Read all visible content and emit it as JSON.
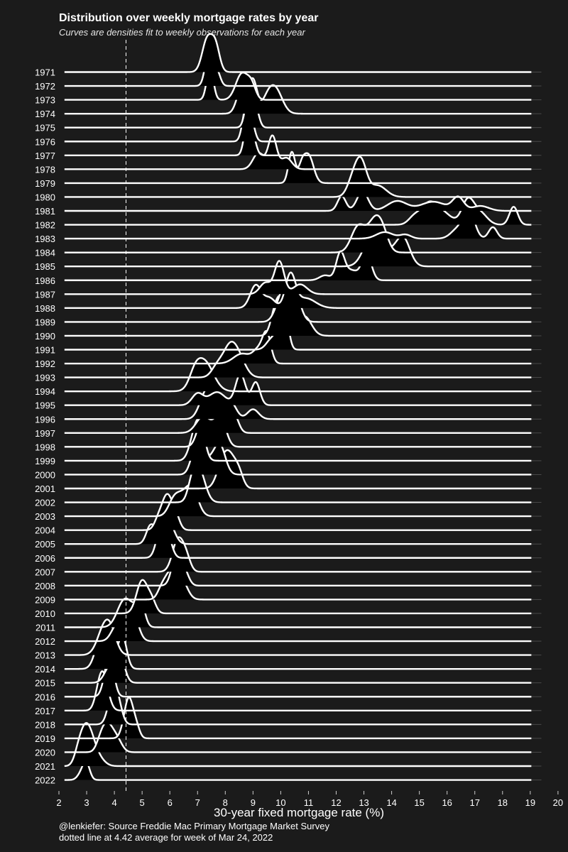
{
  "chart_data": {
    "type": "ridgeline",
    "title": "Distribution over weekly mortgage rates by year",
    "subtitle": "Curves are densities fit to weekly observations for each year",
    "xlabel": "30-year fixed mortgage rate (%)",
    "xlim": [
      2,
      20
    ],
    "x_ticks": [
      "2",
      "3",
      "4",
      "5",
      "6",
      "7",
      "8",
      "9",
      "10",
      "11",
      "12",
      "13",
      "14",
      "15",
      "16",
      "17",
      "18",
      "19",
      "20"
    ],
    "caption_lines": [
      "@lenkiefer: Source Freddie Mac Primary Mortgage Market Survey",
      "dotted line at 4.42 average for week of Mar 24, 2022"
    ],
    "reference_line": 4.42,
    "x_baseline_range": [
      2.2,
      19.05
    ],
    "colors": {
      "background": "#1b1b1b",
      "fill": "#000000",
      "line": "#ffffff",
      "grid": "#4a4a4a"
    },
    "series": [
      {
        "year": "1971",
        "peaks": [
          [
            7.35,
            0.18,
            1.0
          ],
          [
            7.65,
            0.15,
            0.75
          ]
        ]
      },
      {
        "year": "1972",
        "peaks": [
          [
            7.4,
            0.13,
            1.0
          ],
          [
            7.7,
            0.12,
            0.45
          ]
        ]
      },
      {
        "year": "1973",
        "peaks": [
          [
            7.45,
            0.12,
            1.0
          ],
          [
            8.6,
            0.22,
            0.8
          ],
          [
            8.95,
            0.15,
            0.4
          ]
        ]
      },
      {
        "year": "1974",
        "peaks": [
          [
            8.6,
            0.18,
            0.8
          ],
          [
            9.0,
            0.15,
            1.0
          ],
          [
            9.8,
            0.25,
            0.75
          ],
          [
            9.5,
            0.2,
            0.3
          ]
        ]
      },
      {
        "year": "1975",
        "peaks": [
          [
            8.85,
            0.13,
            1.0
          ],
          [
            9.1,
            0.12,
            0.55
          ]
        ]
      },
      {
        "year": "1976",
        "peaks": [
          [
            8.75,
            0.13,
            1.0
          ],
          [
            8.95,
            0.12,
            0.5
          ]
        ]
      },
      {
        "year": "1977",
        "peaks": [
          [
            8.8,
            0.12,
            1.0
          ],
          [
            9.0,
            0.12,
            0.5
          ]
        ]
      },
      {
        "year": "1978",
        "peaks": [
          [
            9.2,
            0.2,
            0.5
          ],
          [
            9.7,
            0.15,
            1.0
          ],
          [
            10.2,
            0.2,
            0.35
          ]
        ]
      },
      {
        "year": "1979",
        "peaks": [
          [
            10.4,
            0.12,
            0.95
          ],
          [
            11.0,
            0.18,
            0.85
          ],
          [
            10.75,
            0.12,
            0.4
          ]
        ]
      },
      {
        "year": "1980",
        "peaks": [
          [
            12.9,
            0.2,
            1.0
          ],
          [
            13.5,
            0.3,
            0.35
          ],
          [
            12.6,
            0.2,
            0.5
          ]
        ]
      },
      {
        "year": "1981",
        "peaks": [
          [
            12.2,
            0.15,
            0.45
          ],
          [
            12.95,
            0.2,
            0.6
          ],
          [
            14.2,
            0.35,
            0.3
          ],
          [
            15.5,
            0.45,
            0.28
          ],
          [
            16.4,
            0.2,
            0.4
          ],
          [
            17.2,
            0.3,
            0.15
          ]
        ]
      },
      {
        "year": "1982",
        "peaks": [
          [
            15.35,
            0.3,
            0.65
          ],
          [
            16.75,
            0.22,
            0.75
          ],
          [
            17.2,
            0.25,
            0.35
          ],
          [
            18.4,
            0.15,
            0.55
          ],
          [
            15.9,
            0.3,
            0.3
          ],
          [
            14.8,
            0.2,
            0.2
          ]
        ]
      },
      {
        "year": "1983",
        "peaks": [
          [
            13.75,
            0.3,
            0.2
          ],
          [
            14.5,
            0.2,
            0.12
          ],
          [
            16.8,
            0.2,
            0.8
          ],
          [
            17.65,
            0.15,
            0.35
          ],
          [
            16.4,
            0.25,
            0.3
          ]
        ]
      },
      {
        "year": "1984",
        "peaks": [
          [
            12.8,
            0.25,
            0.8
          ],
          [
            13.4,
            0.25,
            0.95
          ],
          [
            13.7,
            0.2,
            0.4
          ]
        ]
      },
      {
        "year": "1985",
        "peaks": [
          [
            13.3,
            0.3,
            0.95
          ],
          [
            14.4,
            0.25,
            0.9
          ],
          [
            13.95,
            0.2,
            0.3
          ]
        ]
      },
      {
        "year": "1986",
        "peaks": [
          [
            12.15,
            0.15,
            0.8
          ],
          [
            13.1,
            0.17,
            0.8
          ],
          [
            12.55,
            0.25,
            0.3
          ],
          [
            11.6,
            0.2,
            0.15
          ]
        ]
      },
      {
        "year": "1987",
        "peaks": [
          [
            9.95,
            0.17,
            1.0
          ],
          [
            9.45,
            0.2,
            0.35
          ],
          [
            10.7,
            0.25,
            0.3
          ]
        ]
      },
      {
        "year": "1988",
        "peaks": [
          [
            9.1,
            0.2,
            0.7
          ],
          [
            10.35,
            0.18,
            1.0
          ],
          [
            10.9,
            0.35,
            0.3
          ],
          [
            9.6,
            0.2,
            0.3
          ]
        ]
      },
      {
        "year": "1989",
        "peaks": [
          [
            10.25,
            0.25,
            1.0
          ],
          [
            10.55,
            0.2,
            0.5
          ],
          [
            9.95,
            0.2,
            0.3
          ]
        ]
      },
      {
        "year": "1990",
        "peaks": [
          [
            9.85,
            0.18,
            0.9
          ],
          [
            10.2,
            0.2,
            1.0
          ],
          [
            10.85,
            0.25,
            0.6
          ]
        ]
      },
      {
        "year": "1991",
        "peaks": [
          [
            10.05,
            0.15,
            1.0
          ],
          [
            10.2,
            0.12,
            0.5
          ],
          [
            9.7,
            0.2,
            0.35
          ]
        ]
      },
      {
        "year": "1992",
        "peaks": [
          [
            9.5,
            0.15,
            0.85
          ],
          [
            8.6,
            0.3,
            0.3
          ],
          [
            9.2,
            0.2,
            0.4
          ]
        ]
      },
      {
        "year": "1993",
        "peaks": [
          [
            8.15,
            0.25,
            0.85
          ],
          [
            8.5,
            0.25,
            0.5
          ],
          [
            7.7,
            0.2,
            0.3
          ]
        ]
      },
      {
        "year": "1994",
        "peaks": [
          [
            7.25,
            0.32,
            0.9
          ],
          [
            6.9,
            0.2,
            0.35
          ]
        ]
      },
      {
        "year": "1995",
        "peaks": [
          [
            7.0,
            0.2,
            0.35
          ],
          [
            8.55,
            0.18,
            0.95
          ],
          [
            9.1,
            0.15,
            0.7
          ],
          [
            7.7,
            0.3,
            0.4
          ]
        ]
      },
      {
        "year": "1996",
        "peaks": [
          [
            7.55,
            0.25,
            0.95
          ],
          [
            8.2,
            0.2,
            0.5
          ],
          [
            9.0,
            0.2,
            0.3
          ],
          [
            7.2,
            0.2,
            0.4
          ]
        ]
      },
      {
        "year": "1997",
        "peaks": [
          [
            7.95,
            0.25,
            0.85
          ],
          [
            7.2,
            0.25,
            0.5
          ],
          [
            8.35,
            0.15,
            0.35
          ]
        ]
      },
      {
        "year": "1998",
        "peaks": [
          [
            7.6,
            0.2,
            1.0
          ],
          [
            7.15,
            0.18,
            0.75
          ],
          [
            7.9,
            0.18,
            0.55
          ]
        ]
      },
      {
        "year": "1999",
        "peaks": [
          [
            6.95,
            0.2,
            1.0
          ],
          [
            7.15,
            0.15,
            0.5
          ]
        ]
      },
      {
        "year": "2000",
        "peaks": [
          [
            6.95,
            0.18,
            0.85
          ],
          [
            7.8,
            0.2,
            0.9
          ],
          [
            7.4,
            0.2,
            0.4
          ]
        ]
      },
      {
        "year": "2001",
        "peaks": [
          [
            8.15,
            0.25,
            1.0
          ],
          [
            7.85,
            0.2,
            0.4
          ],
          [
            8.5,
            0.15,
            0.3
          ]
        ]
      },
      {
        "year": "2002",
        "peaks": [
          [
            7.05,
            0.22,
            1.0
          ],
          [
            6.8,
            0.15,
            0.4
          ]
        ]
      },
      {
        "year": "2003",
        "peaks": [
          [
            6.15,
            0.2,
            0.5
          ],
          [
            6.8,
            0.22,
            0.85
          ],
          [
            6.45,
            0.2,
            0.4
          ]
        ]
      },
      {
        "year": "2004",
        "peaks": [
          [
            5.9,
            0.17,
            1.0
          ],
          [
            5.6,
            0.15,
            0.35
          ],
          [
            6.2,
            0.15,
            0.45
          ]
        ]
      },
      {
        "year": "2005",
        "peaks": [
          [
            5.75,
            0.18,
            1.0
          ],
          [
            5.3,
            0.15,
            0.55
          ],
          [
            6.05,
            0.18,
            0.4
          ]
        ]
      },
      {
        "year": "2006",
        "peaks": [
          [
            5.7,
            0.17,
            1.0
          ],
          [
            5.95,
            0.15,
            0.45
          ]
        ]
      },
      {
        "year": "2007",
        "peaks": [
          [
            6.3,
            0.2,
            1.0
          ],
          [
            6.6,
            0.15,
            0.35
          ]
        ]
      },
      {
        "year": "2008",
        "peaks": [
          [
            6.25,
            0.17,
            1.0
          ],
          [
            6.55,
            0.15,
            0.35
          ]
        ]
      },
      {
        "year": "2009",
        "peaks": [
          [
            6.05,
            0.22,
            0.85
          ],
          [
            6.45,
            0.2,
            0.5
          ],
          [
            5.7,
            0.15,
            0.25
          ]
        ]
      },
      {
        "year": "2010",
        "peaks": [
          [
            5.0,
            0.2,
            1.0
          ],
          [
            5.35,
            0.15,
            0.35
          ]
        ]
      },
      {
        "year": "2011",
        "peaks": [
          [
            4.35,
            0.25,
            0.8
          ],
          [
            4.95,
            0.15,
            0.7
          ],
          [
            4.7,
            0.2,
            0.3
          ]
        ]
      },
      {
        "year": "2012",
        "peaks": [
          [
            4.1,
            0.2,
            0.5
          ],
          [
            4.65,
            0.2,
            0.9
          ],
          [
            4.4,
            0.15,
            0.35
          ]
        ]
      },
      {
        "year": "2013",
        "peaks": [
          [
            3.65,
            0.25,
            0.85
          ],
          [
            3.9,
            0.2,
            0.4
          ]
        ]
      },
      {
        "year": "2014",
        "peaks": [
          [
            3.5,
            0.2,
            0.85
          ],
          [
            4.3,
            0.15,
            0.9
          ],
          [
            3.9,
            0.25,
            0.4
          ]
        ]
      },
      {
        "year": "2015",
        "peaks": [
          [
            4.2,
            0.17,
            0.8
          ],
          [
            3.85,
            0.2,
            0.5
          ]
        ]
      },
      {
        "year": "2016",
        "peaks": [
          [
            3.85,
            0.15,
            1.0
          ],
          [
            3.7,
            0.15,
            0.35
          ]
        ]
      },
      {
        "year": "2017",
        "peaks": [
          [
            3.6,
            0.18,
            1.0
          ],
          [
            3.45,
            0.15,
            0.3
          ]
        ]
      },
      {
        "year": "2018",
        "peaks": [
          [
            3.95,
            0.17,
            1.0
          ],
          [
            4.15,
            0.15,
            0.4
          ]
        ]
      },
      {
        "year": "2019",
        "peaks": [
          [
            4.55,
            0.15,
            1.0
          ],
          [
            4.4,
            0.15,
            0.35
          ],
          [
            4.8,
            0.12,
            0.3
          ]
        ]
      },
      {
        "year": "2020",
        "peaks": [
          [
            3.75,
            0.2,
            0.8
          ],
          [
            4.1,
            0.18,
            0.35
          ],
          [
            3.5,
            0.15,
            0.25
          ]
        ]
      },
      {
        "year": "2021",
        "peaks": [
          [
            2.95,
            0.2,
            1.0
          ],
          [
            3.2,
            0.2,
            0.5
          ],
          [
            2.7,
            0.15,
            0.3
          ],
          [
            3.5,
            0.2,
            0.15
          ]
        ]
      },
      {
        "year": "2022",
        "peaks": [
          [
            3.0,
            0.12,
            0.4
          ],
          [
            2.85,
            0.15,
            0.25
          ]
        ]
      }
    ]
  }
}
